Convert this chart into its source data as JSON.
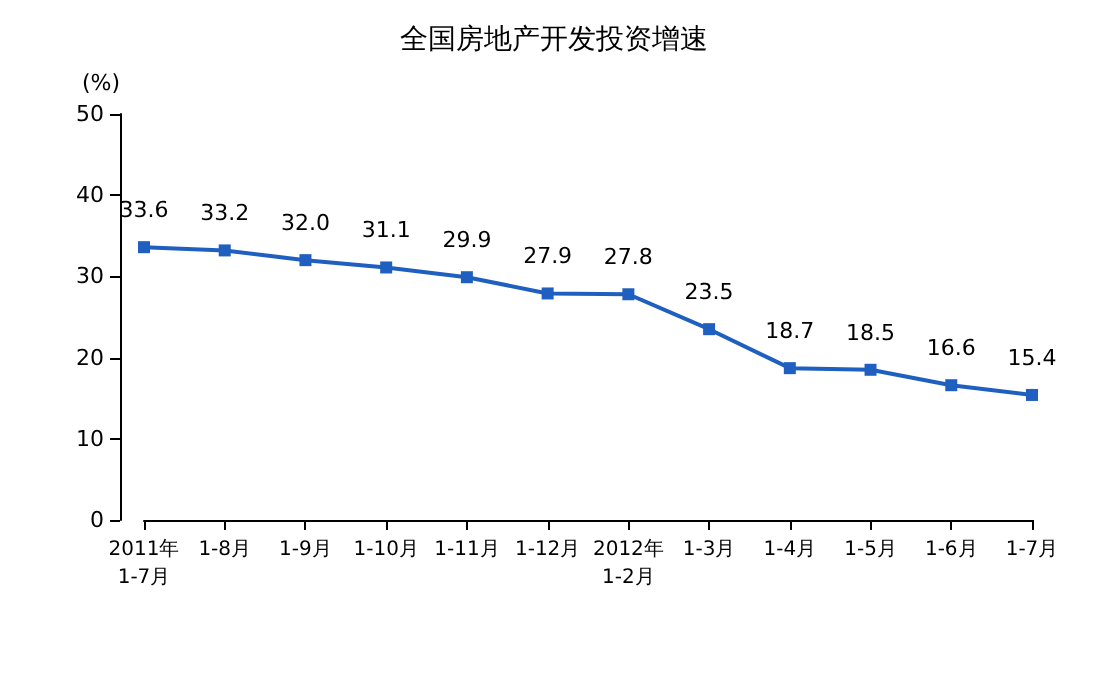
{
  "chart_data": {
    "type": "line",
    "title": "全国房地产开发投资增速",
    "ylabel": "(%)",
    "categories": [
      "2011年\n1-7月",
      "1-8月",
      "1-9月",
      "1-10月",
      "1-11月",
      "1-12月",
      "2012年\n1-2月",
      "1-3月",
      "1-4月",
      "1-5月",
      "1-6月",
      "1-7月"
    ],
    "values": [
      33.6,
      33.2,
      32.0,
      31.1,
      29.9,
      27.9,
      27.8,
      23.5,
      18.7,
      18.5,
      16.6,
      15.4
    ],
    "value_labels": [
      "33.6",
      "33.2",
      "32.0",
      "31.1",
      "29.9",
      "27.9",
      "27.8",
      "23.5",
      "18.7",
      "18.5",
      "16.6",
      "15.4"
    ],
    "color": "#1f5fbf",
    "marker": "square",
    "line_style": "solid",
    "ylim": [
      0,
      50
    ],
    "yticks": [
      0,
      10,
      20,
      30,
      40,
      50
    ]
  }
}
